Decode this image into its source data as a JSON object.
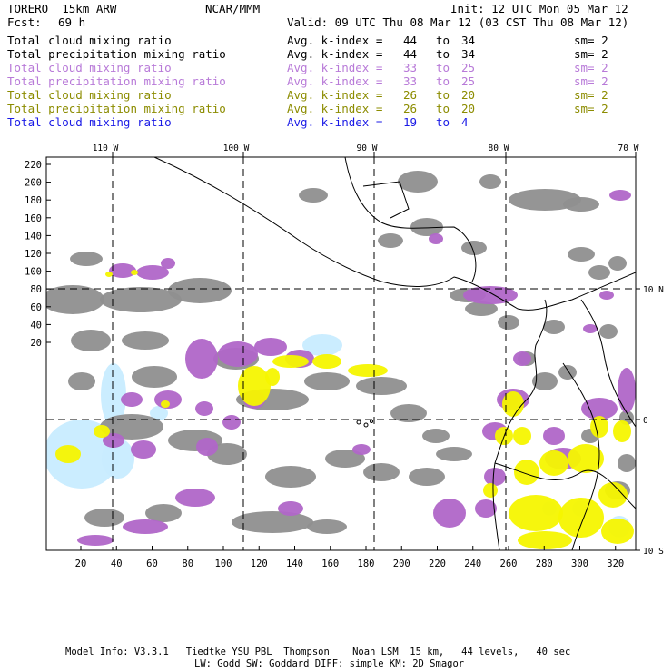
{
  "header": {
    "model": "TORERO  15km ARW",
    "org": "NCAR/MMM",
    "init": "Init: 12 UTC Mon 05 Mar 12",
    "fcst_label": "Fcst:",
    "fcst_value": "69 h",
    "valid": "Valid: 09 UTC Thu 08 Mar 12 (03 CST Thu 08 Mar 12)"
  },
  "legend": [
    {
      "field": "Total cloud mixing ratio",
      "k": "Avg. k-index =",
      "hi": "44",
      "to": "to",
      "lo": "34",
      "sm": "sm= 2",
      "color": "#000000"
    },
    {
      "field": "Total precipitation mixing ratio",
      "k": "Avg. k-index =",
      "hi": "44",
      "to": "to",
      "lo": "34",
      "sm": "sm= 2",
      "color": "#000000"
    },
    {
      "field": "Total cloud mixing ratio",
      "k": "Avg. k-index =",
      "hi": "33",
      "to": "to",
      "lo": "25",
      "sm": "sm= 2",
      "color": "#b87ad8"
    },
    {
      "field": "Total precipitation mixing ratio",
      "k": "Avg. k-index =",
      "hi": "33",
      "to": "to",
      "lo": "25",
      "sm": "sm= 2",
      "color": "#b87ad8"
    },
    {
      "field": "Total cloud mixing ratio",
      "k": "Avg. k-index =",
      "hi": "26",
      "to": "to",
      "lo": "20",
      "sm": "sm= 2",
      "color": "#8c8c00"
    },
    {
      "field": "Total precipitation mixing ratio",
      "k": "Avg. k-index =",
      "hi": "26",
      "to": "to",
      "lo": "20",
      "sm": "sm= 2",
      "color": "#8c8c00"
    },
    {
      "field": "Total cloud mixing ratio",
      "k": "Avg. k-index =",
      "hi": "19",
      "to": "to",
      "lo": "4",
      "sm": "",
      "color": "#1a1ae6"
    }
  ],
  "map": {
    "lon_labels": [
      "110 W",
      "100 W",
      "90 W",
      "80 W",
      "70 W"
    ],
    "lat_labels": [
      "10 N",
      "0",
      "10 S"
    ],
    "y_ticks": [
      "220",
      "200",
      "180",
      "160",
      "140",
      "120",
      "100",
      "80",
      "60",
      "40",
      "20"
    ],
    "x_ticks": [
      "20",
      "40",
      "60",
      "80",
      "100",
      "120",
      "140",
      "160",
      "180",
      "200",
      "220",
      "240",
      "260",
      "280",
      "300",
      "320"
    ],
    "colors": {
      "gray": "#8f8f8f",
      "purple": "#b066c8",
      "yellow": "#f5f500",
      "lightblue": "#c8ecff"
    }
  },
  "footer": {
    "line1": "Model Info: V3.3.1   Tiedtke YSU PBL  Thompson    Noah LSM  15 km,   44 levels,   40 sec",
    "line2": "LW: Godd SW: Goddard DIFF: simple KM: 2D Smagor"
  }
}
